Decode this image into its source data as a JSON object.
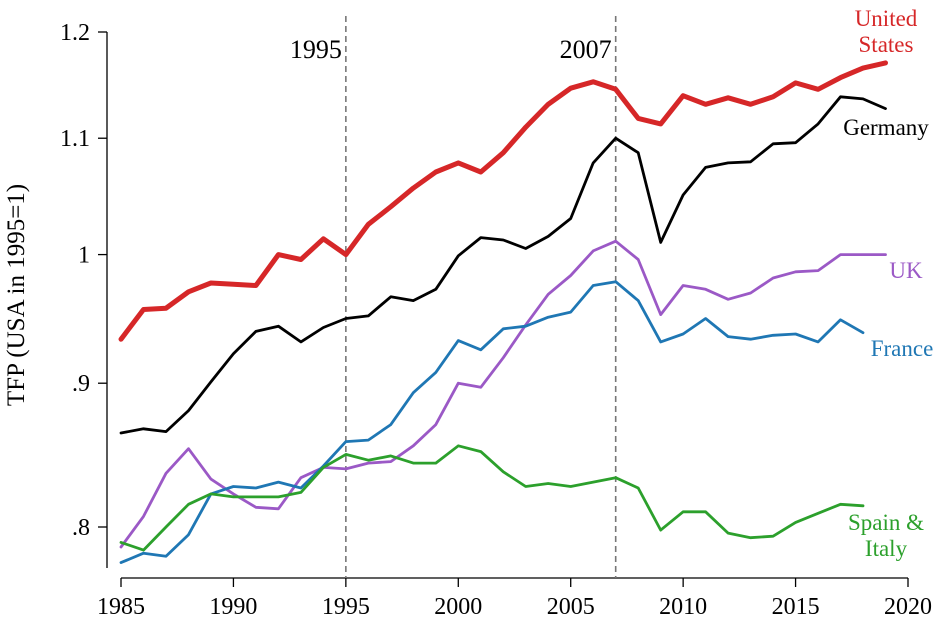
{
  "chart_data": {
    "type": "line",
    "ylabel": "TFP (USA in 1995=1)",
    "xlabel": "",
    "title": "",
    "xlim": [
      1985,
      2020
    ],
    "ylim": [
      0.78,
      1.2
    ],
    "log_scale_y": true,
    "grid": false,
    "x_ticks": [
      1985,
      1990,
      1995,
      2000,
      2005,
      2010,
      2015,
      2020
    ],
    "x_tick_labels": [
      "1985",
      "1990",
      "1995",
      "2000",
      "2005",
      "2010",
      "2015",
      "2020"
    ],
    "y_ticks": [
      0.8,
      0.9,
      1.0,
      1.1,
      1.2
    ],
    "y_tick_labels": [
      ".8",
      ".9",
      "1",
      "1.1",
      "1.2"
    ],
    "annotations": [
      {
        "x": 1995,
        "label": "1995"
      },
      {
        "x": 2007,
        "label": "2007"
      }
    ],
    "series": [
      {
        "name": "United States",
        "label_lines": [
          "United",
          "States"
        ],
        "color": "#d62728",
        "emphasis": "thick",
        "x": [
          1985,
          1986,
          1987,
          1988,
          1989,
          1990,
          1991,
          1992,
          1993,
          1994,
          1995,
          1996,
          1997,
          1998,
          1999,
          2000,
          2001,
          2002,
          2003,
          2004,
          2005,
          2006,
          2007,
          2008,
          2009,
          2010,
          2011,
          2012,
          2013,
          2014,
          2015,
          2016,
          2017,
          2018,
          2019
        ],
        "values": [
          0.933,
          0.956,
          0.957,
          0.97,
          0.977,
          0.976,
          0.975,
          1.0,
          0.996,
          1.013,
          1.0,
          1.025,
          1.04,
          1.056,
          1.07,
          1.078,
          1.07,
          1.087,
          1.11,
          1.131,
          1.146,
          1.152,
          1.145,
          1.118,
          1.113,
          1.139,
          1.131,
          1.137,
          1.131,
          1.138,
          1.151,
          1.145,
          1.156,
          1.165,
          1.17
        ]
      },
      {
        "name": "Germany",
        "label_lines": [
          "Germany"
        ],
        "color": "#000000",
        "x": [
          1985,
          1986,
          1987,
          1988,
          1989,
          1990,
          1991,
          1992,
          1993,
          1994,
          1995,
          1996,
          1997,
          1998,
          1999,
          2000,
          2001,
          2002,
          2003,
          2004,
          2005,
          2006,
          2007,
          2008,
          2009,
          2010,
          2011,
          2012,
          2013,
          2014,
          2015,
          2016,
          2017,
          2018,
          2019
        ],
        "values": [
          0.864,
          0.867,
          0.865,
          0.88,
          0.901,
          0.922,
          0.939,
          0.943,
          0.931,
          0.942,
          0.949,
          0.951,
          0.966,
          0.963,
          0.972,
          0.999,
          1.014,
          1.012,
          1.005,
          1.015,
          1.03,
          1.078,
          1.1,
          1.087,
          1.01,
          1.05,
          1.074,
          1.078,
          1.079,
          1.095,
          1.096,
          1.113,
          1.138,
          1.136,
          1.127
        ]
      },
      {
        "name": "UK",
        "label_lines": [
          "UK"
        ],
        "color": "#9b59c6",
        "x": [
          1985,
          1986,
          1987,
          1988,
          1989,
          1990,
          1991,
          1992,
          1993,
          1994,
          1995,
          1996,
          1997,
          1998,
          1999,
          2000,
          2001,
          2002,
          2003,
          2004,
          2005,
          2006,
          2007,
          2008,
          2009,
          2010,
          2011,
          2012,
          2013,
          2014,
          2015,
          2016,
          2017,
          2018,
          2019
        ],
        "values": [
          0.787,
          0.807,
          0.836,
          0.853,
          0.832,
          0.822,
          0.813,
          0.812,
          0.833,
          0.84,
          0.839,
          0.843,
          0.844,
          0.855,
          0.87,
          0.9,
          0.897,
          0.919,
          0.944,
          0.968,
          0.983,
          1.003,
          1.011,
          0.996,
          0.952,
          0.975,
          0.972,
          0.964,
          0.969,
          0.981,
          0.986,
          0.987,
          1.0,
          1.0,
          1.0
        ]
      },
      {
        "name": "France",
        "label_lines": [
          "France"
        ],
        "color": "#1f77b4",
        "x": [
          1985,
          1986,
          1987,
          1988,
          1989,
          1990,
          1991,
          1992,
          1993,
          1994,
          1995,
          1996,
          1997,
          1998,
          1999,
          2000,
          2001,
          2002,
          2003,
          2004,
          2005,
          2006,
          2007,
          2008,
          2009,
          2010,
          2011,
          2012,
          2013,
          2014,
          2015,
          2016,
          2017,
          2018
        ],
        "values": [
          0.777,
          0.783,
          0.781,
          0.795,
          0.822,
          0.827,
          0.826,
          0.83,
          0.826,
          0.841,
          0.858,
          0.859,
          0.87,
          0.893,
          0.908,
          0.932,
          0.925,
          0.941,
          0.943,
          0.95,
          0.954,
          0.975,
          0.978,
          0.963,
          0.931,
          0.937,
          0.949,
          0.935,
          0.933,
          0.936,
          0.937,
          0.931,
          0.948,
          0.938
        ]
      },
      {
        "name": "Spain & Italy",
        "label_lines": [
          "Spain &",
          "Italy"
        ],
        "color": "#2ca02c",
        "x": [
          1985,
          1986,
          1987,
          1988,
          1989,
          1990,
          1991,
          1992,
          1993,
          1994,
          1995,
          1996,
          1997,
          1998,
          1999,
          2000,
          2001,
          2002,
          2003,
          2004,
          2005,
          2006,
          2007,
          2008,
          2009,
          2010,
          2011,
          2012,
          2013,
          2014,
          2015,
          2016,
          2017,
          2018
        ],
        "values": [
          0.79,
          0.785,
          0.8,
          0.815,
          0.822,
          0.82,
          0.82,
          0.82,
          0.823,
          0.84,
          0.849,
          0.845,
          0.848,
          0.843,
          0.843,
          0.855,
          0.851,
          0.837,
          0.827,
          0.829,
          0.827,
          0.83,
          0.833,
          0.826,
          0.798,
          0.81,
          0.81,
          0.796,
          0.793,
          0.794,
          0.803,
          0.809,
          0.815,
          0.814
        ]
      }
    ]
  }
}
